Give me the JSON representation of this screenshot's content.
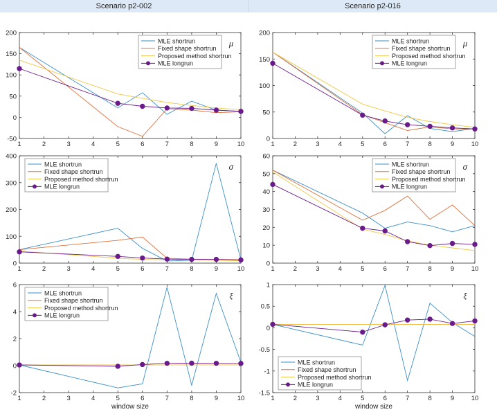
{
  "headers": [
    "Scenario p2-002",
    "Scenario p2-016"
  ],
  "xlabel": "window size",
  "series_names": [
    "MLE shortrun",
    "Fixed shape shortrun",
    "Proposed method shortrun",
    "MLE longrun"
  ],
  "colors": {
    "mle_short": "#3a8fc9",
    "fixed_short": "#e0703a",
    "proposed_short": "#f2c744",
    "mle_long": "#6a1b8a",
    "axis": "#333333",
    "header_bg": "#dde9f6"
  },
  "chart_data": [
    {
      "type": "line",
      "column": 0,
      "row": 0,
      "param": "μ",
      "x": [
        1,
        5,
        6,
        7,
        8,
        9,
        10
      ],
      "xticks": [
        1,
        2,
        3,
        4,
        5,
        6,
        7,
        8,
        9,
        10
      ],
      "ylim": [
        -50,
        200
      ],
      "yticks": [
        -50,
        0,
        50,
        100,
        150,
        200
      ],
      "legend_pos": "top-right",
      "series": [
        {
          "name": "MLE shortrun",
          "values": [
            165,
            22,
            58,
            7,
            38,
            17,
            14
          ]
        },
        {
          "name": "Fixed shape shortrun",
          "values": [
            165,
            -22,
            -45,
            20,
            17,
            11,
            13
          ]
        },
        {
          "name": "Proposed method shortrun",
          "values": [
            135,
            55,
            45,
            35,
            28,
            22,
            18
          ]
        },
        {
          "name": "MLE longrun",
          "values": [
            115,
            33,
            26,
            22,
            21,
            17,
            14
          ]
        }
      ]
    },
    {
      "type": "line",
      "column": 0,
      "row": 1,
      "param": "σ",
      "x": [
        1,
        5,
        6,
        7,
        8,
        9,
        10
      ],
      "xticks": [
        1,
        2,
        3,
        4,
        5,
        6,
        7,
        8,
        9,
        10
      ],
      "ylim": [
        0,
        400
      ],
      "yticks": [
        0,
        100,
        200,
        300,
        400
      ],
      "legend_pos": "top-left",
      "series": [
        {
          "name": "MLE shortrun",
          "values": [
            50,
            130,
            55,
            8,
            10,
            372,
            12
          ]
        },
        {
          "name": "Fixed shape shortrun",
          "values": [
            50,
            85,
            97,
            18,
            15,
            14,
            13
          ]
        },
        {
          "name": "Proposed method shortrun",
          "values": [
            45,
            18,
            14,
            12,
            11,
            10,
            9
          ]
        },
        {
          "name": "MLE longrun",
          "values": [
            42,
            25,
            19,
            15,
            14,
            14,
            12
          ]
        }
      ]
    },
    {
      "type": "line",
      "column": 0,
      "row": 2,
      "param": "ξ",
      "x": [
        1,
        5,
        6,
        7,
        8,
        9,
        10
      ],
      "xticks": [
        1,
        2,
        3,
        4,
        5,
        6,
        7,
        8,
        9,
        10
      ],
      "ylim": [
        -2,
        6
      ],
      "yticks": [
        -2,
        0,
        2,
        4,
        6
      ],
      "legend_pos": "top-left",
      "series": [
        {
          "name": "MLE shortrun",
          "values": [
            0.05,
            -1.65,
            -1.35,
            5.8,
            -1.45,
            5.35,
            0.25
          ]
        },
        {
          "name": "Fixed shape shortrun",
          "values": [
            0.05,
            0.05,
            0.05,
            0.05,
            0.05,
            0.05,
            0.05
          ]
        },
        {
          "name": "Proposed method shortrun",
          "values": [
            0.05,
            0.05,
            0.05,
            0.05,
            0.05,
            0.05,
            0.05
          ]
        },
        {
          "name": "MLE longrun",
          "values": [
            0.05,
            -0.05,
            0.08,
            0.17,
            0.18,
            0.17,
            0.16
          ]
        }
      ]
    },
    {
      "type": "line",
      "column": 1,
      "row": 0,
      "param": "μ",
      "x": [
        1,
        5,
        6,
        7,
        8,
        9,
        10
      ],
      "xticks": [
        1,
        2,
        3,
        4,
        5,
        6,
        7,
        8,
        9,
        10
      ],
      "ylim": [
        0,
        200
      ],
      "yticks": [
        0,
        50,
        100,
        150,
        200
      ],
      "legend_pos": "top-right",
      "series": [
        {
          "name": "MLE shortrun",
          "values": [
            163,
            48,
            9,
            43,
            19,
            13,
            19
          ]
        },
        {
          "name": "Fixed shape shortrun",
          "values": [
            163,
            45,
            30,
            15,
            22,
            18,
            18
          ]
        },
        {
          "name": "Proposed method shortrun",
          "values": [
            163,
            65,
            52,
            40,
            32,
            26,
            21
          ]
        },
        {
          "name": "MLE longrun",
          "values": [
            142,
            44,
            33,
            26,
            23,
            20,
            18
          ]
        }
      ]
    },
    {
      "type": "line",
      "column": 1,
      "row": 1,
      "param": "σ",
      "x": [
        1,
        5,
        6,
        7,
        8,
        9,
        10
      ],
      "xticks": [
        1,
        2,
        3,
        4,
        5,
        6,
        7,
        8,
        9,
        10
      ],
      "ylim": [
        0,
        60
      ],
      "yticks": [
        0,
        10,
        20,
        30,
        40,
        50,
        60
      ],
      "legend_pos": "top-right",
      "series": [
        {
          "name": "MLE shortrun",
          "values": [
            52,
            28,
            19.5,
            23,
            21,
            17.5,
            21
          ]
        },
        {
          "name": "Fixed shape shortrun",
          "values": [
            52,
            24,
            29.5,
            37.5,
            24.5,
            32.5,
            21
          ]
        },
        {
          "name": "Proposed method shortrun",
          "values": [
            51,
            19,
            16,
            12.5,
            10,
            8.5,
            7
          ]
        },
        {
          "name": "MLE longrun",
          "values": [
            44,
            19.5,
            18,
            12,
            9.8,
            11,
            10.5
          ]
        }
      ]
    },
    {
      "type": "line",
      "column": 1,
      "row": 2,
      "param": "ξ",
      "x": [
        1,
        5,
        6,
        7,
        8,
        9,
        10
      ],
      "xticks": [
        1,
        2,
        3,
        4,
        5,
        6,
        7,
        8,
        9,
        10
      ],
      "ylim": [
        -1.5,
        1
      ],
      "yticks": [
        -1.5,
        -1,
        -0.5,
        0,
        0.5,
        1
      ],
      "legend_pos": "bottom-left",
      "series": [
        {
          "name": "MLE shortrun",
          "values": [
            0.08,
            -0.4,
            0.98,
            -1.22,
            0.57,
            0.12,
            -0.2
          ]
        },
        {
          "name": "Fixed shape shortrun",
          "values": [
            0.08,
            0.08,
            0.08,
            0.08,
            0.08,
            0.08,
            0.08
          ]
        },
        {
          "name": "Proposed method shortrun",
          "values": [
            0.08,
            0.08,
            0.08,
            0.08,
            0.08,
            0.08,
            0.08
          ]
        },
        {
          "name": "MLE longrun",
          "values": [
            0.08,
            -0.1,
            0.07,
            0.18,
            0.2,
            0.1,
            0.16
          ]
        }
      ]
    }
  ]
}
